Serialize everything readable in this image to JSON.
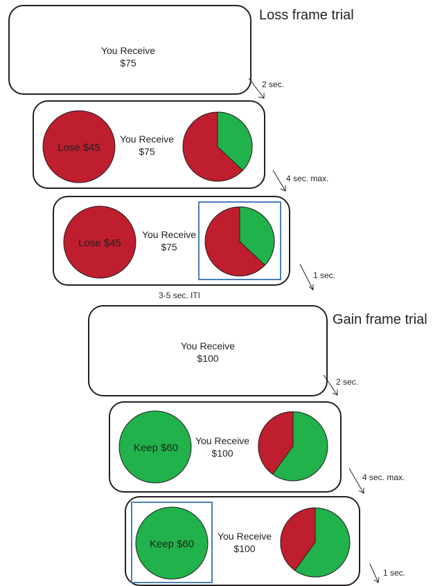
{
  "headings": {
    "loss": "Loss frame trial",
    "gain": "Gain frame trial"
  },
  "text": {
    "receive": "You Receive",
    "amount_loss": "$75",
    "amount_gain": "$100",
    "lose": "Lose $45",
    "keep": "Keep $60"
  },
  "timings": {
    "t1": "2 sec.",
    "t2": "4 sec. max.",
    "t3": "1 sec.",
    "iti": "3-5 sec. ITI",
    "t4": "2 sec.",
    "t5": "4 sec. max.",
    "t6": "1 sec."
  },
  "colors": {
    "red": "#be1e2d",
    "green": "#21b24b",
    "selection": "#4a7ebb",
    "outline": "#231f20"
  },
  "pies": {
    "loss_green_fraction": 0.37,
    "gain_red_fraction": 0.4
  }
}
